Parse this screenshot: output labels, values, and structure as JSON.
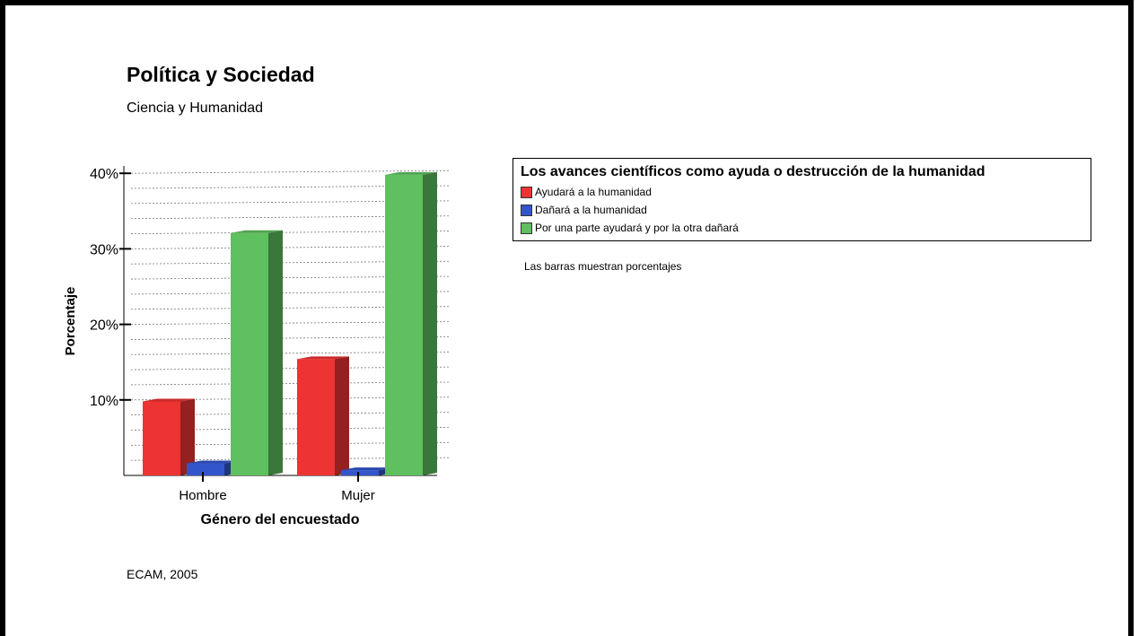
{
  "page": {
    "title": "Política y Sociedad",
    "subtitle": "Ciencia y Humanidad",
    "footer": "ECAM, 2005",
    "note": "Las barras muestran porcentajes"
  },
  "chart_data": {
    "type": "bar",
    "categories": [
      "Hombre",
      "Mujer"
    ],
    "series": [
      {
        "name": "Ayudará a la humanidad",
        "values": [
          9.8,
          15.4
        ],
        "color": "#ee3333"
      },
      {
        "name": "Dañará a la humanidad",
        "values": [
          1.6,
          0.7
        ],
        "color": "#3355cc"
      },
      {
        "name": "Por una parte ayudará y por la otra dañará",
        "values": [
          32.1,
          39.8
        ],
        "color": "#5ec05e"
      }
    ],
    "title": "",
    "xlabel": "Género del encuestado",
    "ylabel": "Porcentaje",
    "ylim": [
      0,
      40
    ],
    "yticks": [
      "10%",
      "20%",
      "30%",
      "40%"
    ],
    "ytick_values": [
      10,
      20,
      30,
      40
    ],
    "legend_title": "Los avances científicos como ayuda o destrucción de la humanidad",
    "legend_position": "right",
    "grid": true
  }
}
